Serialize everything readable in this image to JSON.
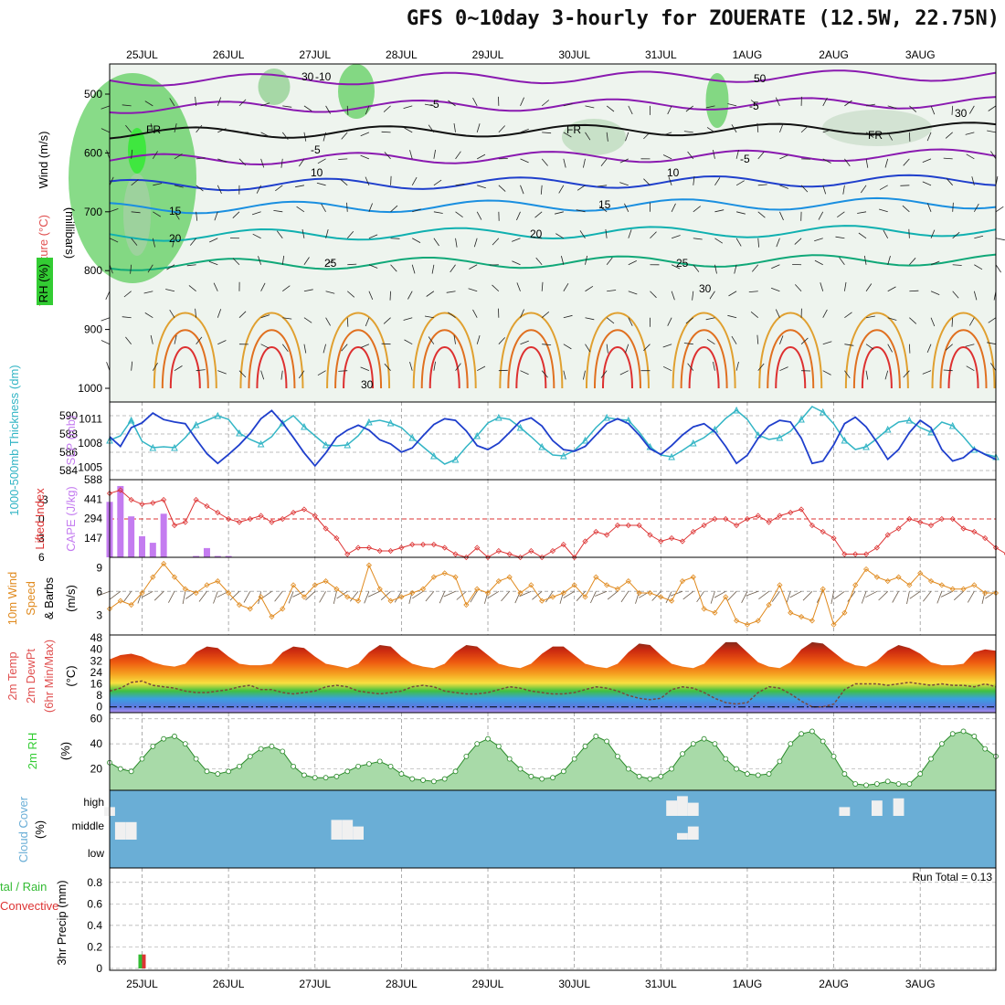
{
  "title": "GFS 0~10day 3-hourly for ZOUERATE (12.5W, 22.75N)",
  "dates": [
    "25JUL",
    "26JUL",
    "27JUL",
    "28JUL",
    "29JUL",
    "30JUL",
    "31JUL",
    "1AUG",
    "2AUG",
    "3AUG"
  ],
  "colors": {
    "temperature_axis": "#e05050",
    "rh_green": "#33cc33",
    "thickness": "#33b5c5",
    "slp": "#1f3fcc",
    "lifted_index": "#dd3333",
    "cape": "#c47cf0",
    "wind10m": "#e08a1e",
    "cloud": "#6aaed6",
    "precip_total": "#33bb33",
    "precip_conv": "#dd3333"
  },
  "panels": {
    "sounding": {
      "ylabel_mb": "(millibars)",
      "label_wind": "Wind (m/s)",
      "label_temp": "Temperature (°C)",
      "label_rh": "RH (%)",
      "levels": [
        "500",
        "600",
        "700",
        "800",
        "900",
        "1000"
      ],
      "isotherm_labels": [
        "-10",
        "-5",
        "FR",
        "-5",
        "10",
        "15",
        "20",
        "25",
        "30",
        "30",
        "FR",
        "FR",
        "10",
        "15",
        "20",
        "25",
        "30",
        "-5",
        "-5",
        "50",
        "30"
      ]
    },
    "thickness_slp": {
      "label_left": "1000-500mb Thickness (dm)",
      "label_right": "SLP (mb)",
      "thickness_ticks": [
        "590",
        "588",
        "586",
        "584"
      ],
      "slp_ticks": [
        "1011",
        "1008",
        "1005"
      ]
    },
    "li_cape": {
      "label_left": "Lifted Index",
      "label_right": "CAPE (J/kg)",
      "li_ticks": [
        "-3",
        "0",
        "3",
        "6"
      ],
      "cape_ticks": [
        "588",
        "441",
        "294",
        "147"
      ]
    },
    "wind10m": {
      "label1": "10m Wind",
      "label2": "Speed",
      "label3": "& Barbs",
      "units": "(m/s)",
      "ticks": [
        "9",
        "6",
        "3"
      ]
    },
    "temp2m": {
      "label1": "2m Temp",
      "label2": "2m DewPt",
      "label3": "(6hr Min/Max)",
      "units": "(°C)",
      "ticks": [
        "48",
        "40",
        "32",
        "24",
        "16",
        "8",
        "0"
      ]
    },
    "rh2m": {
      "label": "2m RH",
      "units": "(%)",
      "ticks": [
        "60",
        "40",
        "20"
      ]
    },
    "cloud": {
      "label": "Cloud Cover",
      "units": "(%)",
      "levels": [
        "high",
        "middle",
        "low"
      ]
    },
    "precip": {
      "label_a": "tal / Rain",
      "label_b": "Convective",
      "units": "3hr Precip (mm)",
      "run_total": "Run Total = 0.13",
      "ticks": [
        "0.8",
        "0.6",
        "0.4",
        "0.2",
        "0"
      ]
    }
  },
  "chart_data": [
    {
      "type": "line",
      "panel": "thickness_slp",
      "x_unit": "3-hourly steps from 24JUL 12Z",
      "series": [
        {
          "name": "1000-500mb Thickness (dm)",
          "values": [
            587.3,
            587.8,
            589.5,
            587.2,
            586.5,
            586.6,
            586.5,
            587.6,
            589.0,
            589.5,
            590.0,
            589.6,
            588.1,
            587.4,
            586.9,
            587.7,
            589.2,
            590.0,
            588.8,
            587.8,
            586.8,
            586.7,
            586.8,
            587.8,
            589.3,
            589.5,
            589.2,
            588.7,
            587.6,
            586.6,
            585.6,
            584.7,
            585.2,
            586.6,
            587.8,
            589.2,
            589.8,
            589.6,
            588.7,
            587.7,
            586.6,
            585.7,
            585.6,
            586.2,
            587.3,
            588.7,
            589.8,
            589.6,
            589.5,
            588.2,
            586.6,
            585.7,
            585.5,
            586.2,
            587.0,
            587.6,
            588.5,
            589.7,
            590.6,
            589.6,
            587.9,
            587.4,
            587.6,
            588.3,
            589.6,
            591.0,
            590.4,
            589.1,
            587.3,
            586.3,
            586.6,
            587.5,
            588.5,
            589.3,
            589.5,
            588.7,
            588.2,
            589.3,
            588.9,
            587.7,
            586.3,
            585.8,
            585.5
          ]
        },
        {
          "name": "SLP (mb)",
          "values": [
            1008.8,
            1007.6,
            1009.9,
            1010.5,
            1011.7,
            1010.9,
            1010.6,
            1010.4,
            1008.5,
            1006.7,
            1005.5,
            1006.6,
            1007.8,
            1009.2,
            1011.0,
            1012.0,
            1010.5,
            1008.7,
            1006.8,
            1005.2,
            1006.8,
            1008.7,
            1009.6,
            1010.2,
            1009.6,
            1008.4,
            1007.9,
            1006.9,
            1007.4,
            1008.9,
            1010.3,
            1011.0,
            1010.8,
            1009.5,
            1007.7,
            1007.2,
            1008.0,
            1009.3,
            1010.7,
            1011.1,
            1010.1,
            1008.3,
            1007.2,
            1007.0,
            1007.6,
            1009.0,
            1010.4,
            1011.0,
            1010.4,
            1009.0,
            1007.3,
            1006.6,
            1007.7,
            1009.0,
            1010.0,
            1010.4,
            1009.4,
            1007.6,
            1005.5,
            1006.5,
            1008.6,
            1010.1,
            1010.8,
            1010.6,
            1008.6,
            1005.5,
            1005.8,
            1007.8,
            1010.4,
            1011.2,
            1010.0,
            1008.1,
            1006.0,
            1007.2,
            1009.3,
            1010.8,
            1009.9,
            1007.2,
            1005.8,
            1006.2,
            1007.3,
            1006.6,
            1006.0
          ]
        }
      ]
    },
    {
      "type": "bar",
      "panel": "li_cape",
      "series": [
        {
          "name": "Lifted Index",
          "values": [
            -4.0,
            -4.5,
            -3.0,
            -2.3,
            -2.5,
            -3.0,
            1.0,
            0.5,
            -3.0,
            -2.0,
            -1.0,
            0.0,
            0.5,
            0.0,
            -0.5,
            0.5,
            0.0,
            -1.0,
            -1.5,
            -0.5,
            1.5,
            3.0,
            5.5,
            4.5,
            4.5,
            5.0,
            5.0,
            4.5,
            4.0,
            4.0,
            4.0,
            4.5,
            5.5,
            6.0,
            4.5,
            6.0,
            5.0,
            5.5,
            6.0,
            5.0,
            6.0,
            5.0,
            4.0,
            6.0,
            3.5,
            2.0,
            2.5,
            1.0,
            1.0,
            1.0,
            2.5,
            3.5,
            3.0,
            3.5,
            2.0,
            1.0,
            0.0,
            0.0,
            1.0,
            0.0,
            -0.5,
            0.5,
            -0.5,
            -1.0,
            -1.5,
            1.0,
            2.0,
            3.0,
            5.5,
            5.5,
            5.5,
            4.5,
            2.5,
            1.5,
            0.0,
            0.5,
            1.0,
            0.0,
            0.0,
            1.5,
            2.0,
            3.0,
            4.5,
            5.5
          ]
        },
        {
          "name": "CAPE (J/kg)",
          "values": [
            420,
            540,
            310,
            160,
            110,
            330,
            0,
            0,
            10,
            70,
            10,
            10,
            0,
            0,
            0,
            0,
            0,
            0,
            0,
            0,
            0,
            0,
            0,
            0,
            0,
            0,
            0,
            0,
            0,
            0,
            0,
            0,
            0,
            0,
            0,
            0,
            0,
            0,
            0,
            0,
            0,
            0,
            0,
            0,
            0,
            0,
            0,
            0,
            0,
            0,
            0,
            0,
            0,
            0,
            0,
            0,
            0,
            0,
            0,
            0,
            0,
            0,
            0,
            0,
            0,
            0,
            0,
            0,
            0,
            0,
            0,
            0,
            0,
            0,
            0,
            0,
            0,
            0,
            0,
            0,
            0,
            0,
            0
          ]
        }
      ]
    },
    {
      "type": "line",
      "panel": "wind10m",
      "series": [
        {
          "name": "10m Wind Speed (m/s)",
          "values": [
            3.8,
            4.8,
            4.3,
            5.8,
            7.8,
            9.5,
            7.8,
            6.3,
            5.8,
            6.8,
            7.3,
            5.8,
            4.3,
            3.8,
            5.3,
            2.8,
            3.8,
            6.8,
            5.3,
            6.8,
            7.3,
            6.3,
            5.3,
            4.8,
            9.3,
            6.3,
            4.8,
            5.3,
            5.8,
            6.3,
            7.8,
            8.3,
            7.8,
            4.3,
            6.3,
            5.8,
            7.3,
            7.8,
            5.8,
            6.8,
            4.8,
            5.3,
            5.8,
            6.8,
            5.3,
            7.8,
            6.8,
            6.3,
            7.3,
            5.8,
            5.8,
            5.3,
            4.8,
            7.3,
            7.8,
            3.8,
            3.3,
            5.3,
            2.3,
            1.8,
            2.3,
            4.3,
            6.8,
            3.3,
            2.8,
            2.3,
            6.3,
            1.8,
            3.3,
            6.8,
            8.8,
            7.8,
            7.3,
            7.8,
            6.8,
            8.3,
            7.3,
            6.8,
            6.3,
            6.3,
            6.8,
            5.8,
            5.8
          ]
        }
      ]
    },
    {
      "type": "area",
      "panel": "temp2m",
      "series": [
        {
          "name": "2m Temp",
          "values": [
            33.0,
            36.0,
            37.0,
            35.0,
            31.0,
            29.0,
            28.0,
            30.0,
            38.0,
            42.0,
            41.0,
            35.0,
            30.0,
            29.0,
            29.0,
            30.0,
            38.0,
            42.0,
            41.0,
            35.0,
            30.0,
            28.5,
            27.0,
            30.0,
            38.0,
            43.0,
            42.0,
            35.0,
            30.0,
            28.0,
            27.0,
            30.0,
            38.0,
            43.0,
            42.0,
            36.0,
            30.0,
            28.0,
            27.0,
            30.0,
            37.0,
            42.0,
            42.0,
            36.0,
            30.0,
            28.0,
            27.0,
            30.0,
            38.0,
            44.0,
            43.0,
            36.0,
            30.0,
            28.0,
            27.0,
            30.0,
            38.0,
            45.0,
            45.0,
            38.0,
            31.0,
            28.0,
            27.0,
            31.0,
            40.0,
            45.0,
            44.0,
            38.0,
            32.0,
            29.0,
            28.0,
            32.0,
            39.0,
            43.0,
            41.0,
            37.0,
            31.0,
            29.0,
            29.0,
            30.0,
            38.0,
            40.0,
            39.0
          ]
        },
        {
          "name": "2m DewPt",
          "values": [
            11,
            13,
            17,
            18,
            15,
            14,
            13,
            11,
            10,
            10,
            11,
            12,
            14,
            15,
            12,
            12,
            10,
            9,
            10,
            11,
            14,
            15,
            14,
            11,
            10,
            9,
            10,
            11,
            14,
            15,
            14,
            11,
            10,
            9,
            9,
            10,
            12,
            14,
            13,
            11,
            10,
            9,
            9,
            10,
            12,
            14,
            13,
            11,
            8,
            6,
            5,
            6,
            12,
            14,
            13,
            10,
            6,
            3,
            2,
            3,
            10,
            14,
            13,
            9,
            4,
            0,
            0,
            2,
            12,
            16,
            16,
            16,
            15,
            16,
            17,
            16,
            15,
            16,
            15,
            15,
            14,
            16,
            14
          ]
        }
      ]
    },
    {
      "type": "area",
      "panel": "rh2m",
      "series": [
        {
          "name": "2m RH (%)",
          "values": [
            25,
            20,
            18,
            28,
            38,
            44,
            46,
            40,
            28,
            18,
            16,
            18,
            22,
            30,
            36,
            38,
            34,
            22,
            15,
            13,
            13,
            14,
            18,
            22,
            24,
            26,
            22,
            16,
            12,
            11,
            10,
            12,
            18,
            30,
            40,
            44,
            38,
            28,
            20,
            14,
            12,
            13,
            18,
            28,
            38,
            46,
            42,
            30,
            20,
            14,
            12,
            14,
            20,
            32,
            40,
            44,
            40,
            28,
            20,
            16,
            15,
            16,
            26,
            40,
            48,
            50,
            42,
            30,
            16,
            8,
            7,
            8,
            10,
            8,
            8,
            16,
            28,
            40,
            48,
            50,
            46,
            36,
            30
          ]
        }
      ]
    },
    {
      "type": "bar",
      "panel": "cloud",
      "series": [
        {
          "name": "high",
          "categories": [
            "24JUL 12Z",
            "31JUL 00Z",
            "31JUL 03Z",
            "31JUL 06Z",
            "2AUG 00Z",
            "2AUG 09Z",
            "2AUG 15Z"
          ],
          "values": [
            40,
            70,
            90,
            60,
            40,
            70,
            80
          ]
        },
        {
          "name": "middle",
          "categories": [
            "24JUL 15Z",
            "24JUL 18Z",
            "27JUL 03Z",
            "27JUL 06Z",
            "27JUL 09Z",
            "31JUL 03Z",
            "31JUL 06Z"
          ],
          "values": [
            80,
            80,
            90,
            90,
            60,
            30,
            60
          ]
        }
      ]
    },
    {
      "type": "bar",
      "panel": "precip",
      "series": [
        {
          "name": "Total / Rain",
          "categories": [
            "24JUL 21Z"
          ],
          "values": [
            0.13
          ]
        },
        {
          "name": "Convective",
          "categories": [
            "24JUL 21Z"
          ],
          "values": [
            0.13
          ]
        }
      ]
    }
  ]
}
